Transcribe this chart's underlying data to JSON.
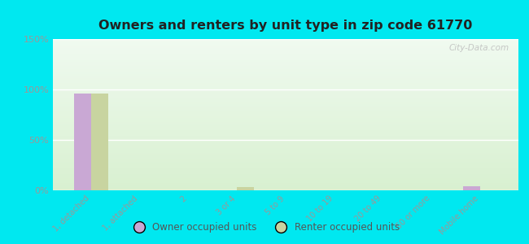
{
  "title": "Owners and renters by unit type in zip code 61770",
  "categories": [
    "1, detached",
    "1, attached",
    "2",
    "3 or 4",
    "5 to 9",
    "10 to 19",
    "20 to 49",
    "50 or more",
    "Mobile home"
  ],
  "owner_values": [
    96,
    0,
    0,
    0,
    0,
    0,
    0,
    0,
    4
  ],
  "renter_values": [
    96,
    0,
    0,
    3,
    0,
    0,
    0,
    0,
    0
  ],
  "owner_color": "#c9a8d4",
  "renter_color": "#c8d4a0",
  "bg_top": "#f0faf0",
  "bg_bottom": "#d8f0d0",
  "outer_bg": "#00e8f0",
  "ylim": [
    0,
    150
  ],
  "yticks": [
    0,
    50,
    100,
    150
  ],
  "ytick_labels": [
    "0%",
    "50%",
    "100%",
    "150%"
  ],
  "bar_width": 0.35,
  "watermark": "City-Data.com",
  "legend_owner": "Owner occupied units",
  "legend_renter": "Renter occupied units"
}
